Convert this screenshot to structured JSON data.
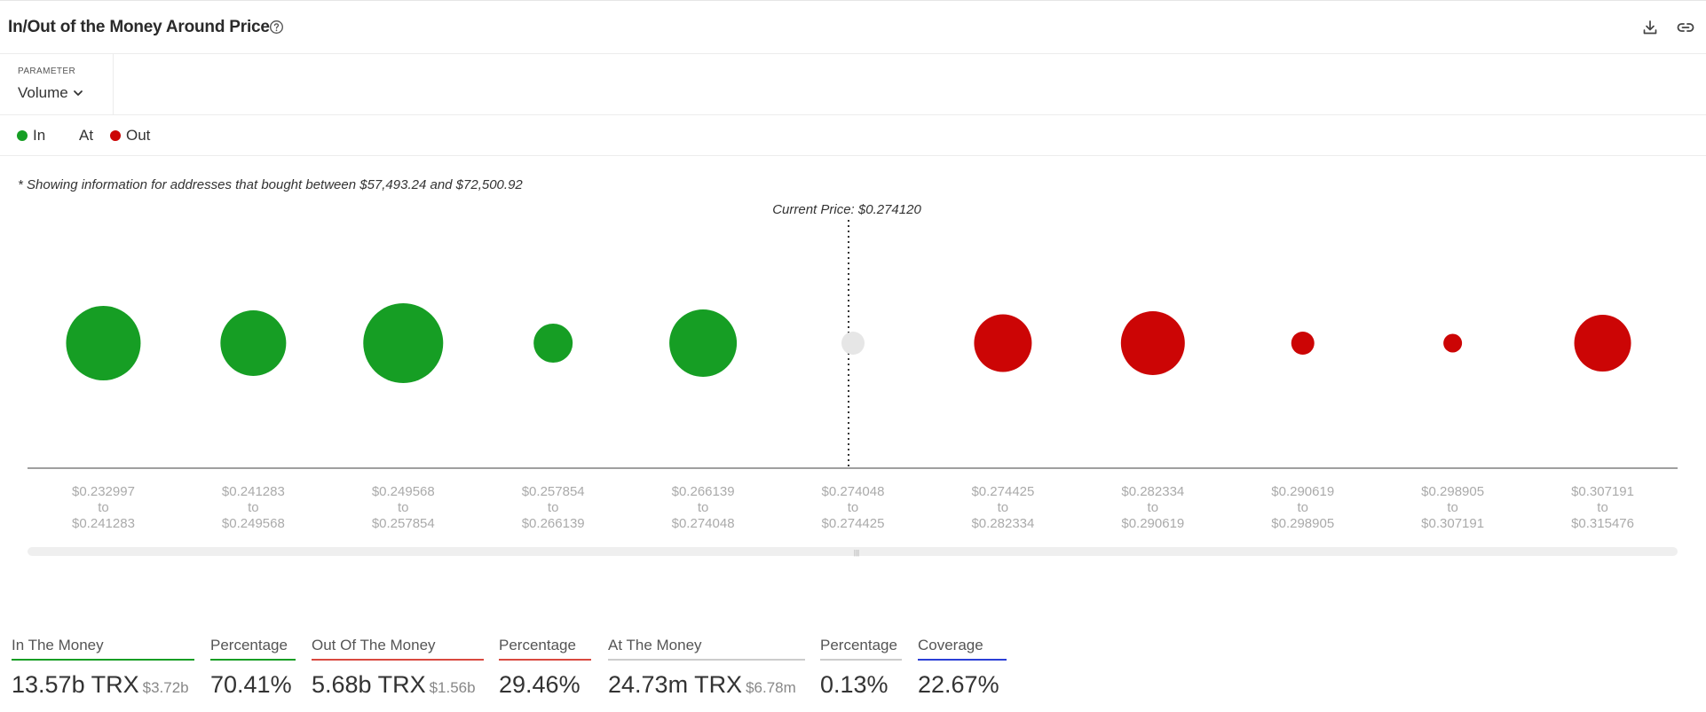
{
  "header": {
    "title": "In/Out of the Money Around Price",
    "help_icon": "question-circle-icon",
    "download_icon": "download-icon",
    "link_icon": "link-icon"
  },
  "parameter": {
    "label": "PARAMETER",
    "selected": "Volume"
  },
  "legend": {
    "in": "In",
    "at": "At",
    "out": "Out"
  },
  "note": "* Showing information for addresses that bought between $57,493.24 and $72,500.92",
  "colors": {
    "in": "#169e24",
    "at": "#e6e6e6",
    "out": "#cc0505",
    "in_underline": "#169e24",
    "out_underline": "#d9493f",
    "at_underline": "#cccccc",
    "coverage_underline": "#2b3fd6"
  },
  "chart_data": {
    "type": "bubble",
    "current_price_label": "Current Price: $0.274120",
    "current_price": 0.27412,
    "categories": [
      {
        "from": "$0.232997",
        "to": "$0.241283",
        "status": "in",
        "size": 84
      },
      {
        "from": "$0.241283",
        "to": "$0.249568",
        "status": "in",
        "size": 74
      },
      {
        "from": "$0.249568",
        "to": "$0.257854",
        "status": "in",
        "size": 90
      },
      {
        "from": "$0.257854",
        "to": "$0.266139",
        "status": "in",
        "size": 44
      },
      {
        "from": "$0.266139",
        "to": "$0.274048",
        "status": "in",
        "size": 76
      },
      {
        "from": "$0.274048",
        "to": "$0.274425",
        "status": "at",
        "size": 26
      },
      {
        "from": "$0.274425",
        "to": "$0.282334",
        "status": "out",
        "size": 65
      },
      {
        "from": "$0.282334",
        "to": "$0.290619",
        "status": "out",
        "size": 72
      },
      {
        "from": "$0.290619",
        "to": "$0.298905",
        "status": "out",
        "size": 26
      },
      {
        "from": "$0.298905",
        "to": "$0.307191",
        "status": "out",
        "size": 21
      },
      {
        "from": "$0.307191",
        "to": "$0.315476",
        "status": "out",
        "size": 64
      }
    ],
    "to_word": "to"
  },
  "stats": [
    {
      "label": "In The Money",
      "value": "13.57b TRX",
      "sub": "$3.72b",
      "underline": "in_underline"
    },
    {
      "label": "Percentage",
      "value": "70.41%",
      "sub": "",
      "underline": "in_underline"
    },
    {
      "label": "Out Of The Money",
      "value": "5.68b TRX",
      "sub": "$1.56b",
      "underline": "out_underline"
    },
    {
      "label": "Percentage",
      "value": "29.46%",
      "sub": "",
      "underline": "out_underline"
    },
    {
      "label": "At The Money",
      "value": "24.73m TRX",
      "sub": "$6.78m",
      "underline": "at_underline"
    },
    {
      "label": "Percentage",
      "value": "0.13%",
      "sub": "",
      "underline": "at_underline"
    },
    {
      "label": "Coverage",
      "value": "22.67%",
      "sub": "",
      "underline": "coverage_underline"
    }
  ]
}
